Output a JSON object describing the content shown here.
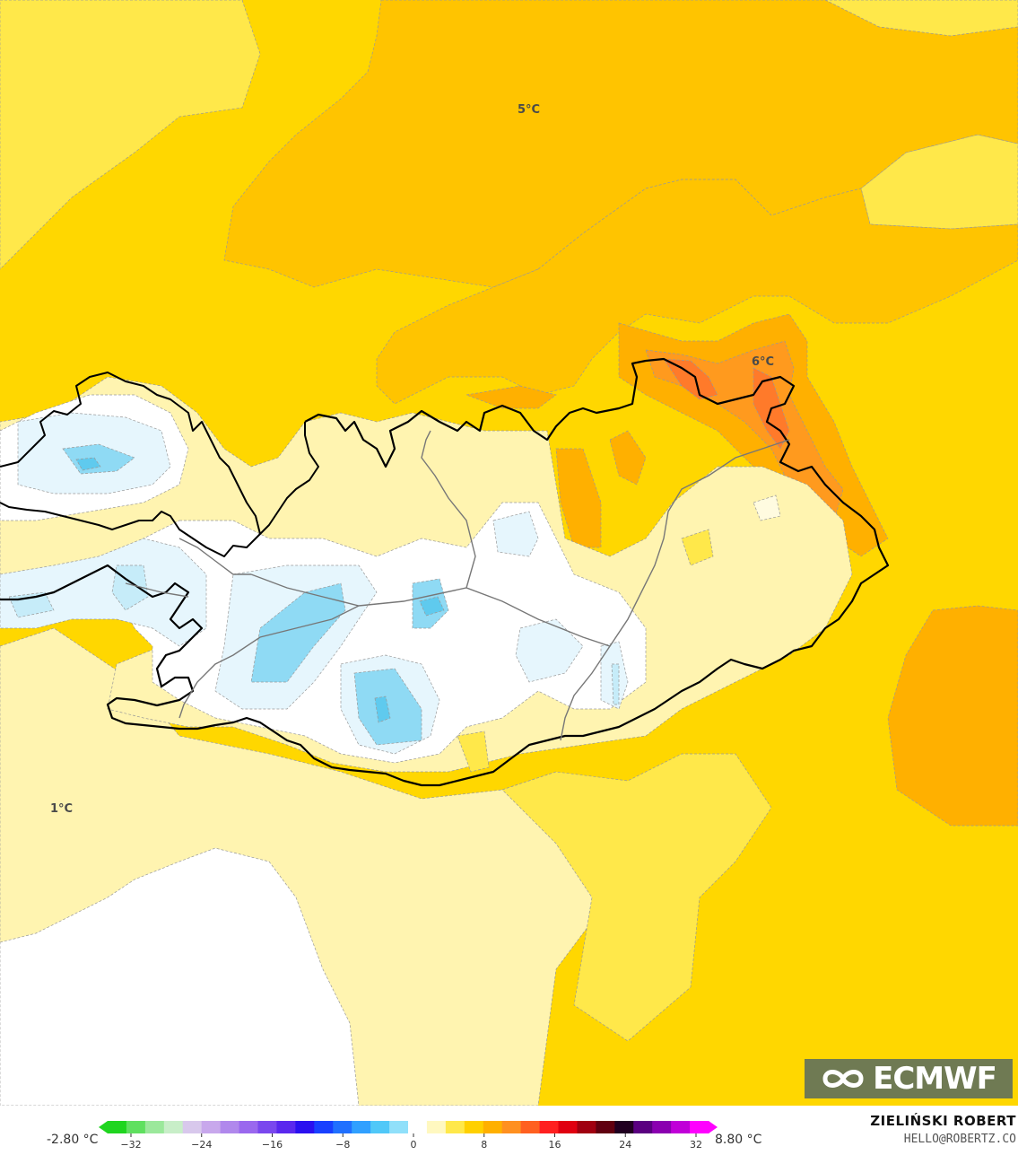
{
  "map": {
    "labels": {
      "label_5": "5°C",
      "label_6": "6°C",
      "label_1": "1°C"
    },
    "colors": {
      "white": "#ffffff",
      "pale_yellow": "#fff4b0",
      "light_yellow": "#ffe84a",
      "yellow": "#ffd700",
      "gold": "#ffc400",
      "orange": "#ffb000",
      "dark_orange": "#ff9a1e",
      "red_orange": "#ff7a2a",
      "pale_blue": "#e6f6fd",
      "light_blue": "#c6ecf9",
      "blue": "#8fdaf4",
      "mid_blue": "#5fcaee"
    }
  },
  "legend": {
    "min_value": "-2.80 °C",
    "max_value": "8.80 °C",
    "ticks": [
      "−32",
      "−24",
      "−16",
      "−8",
      "0",
      "8",
      "16",
      "24",
      "32"
    ],
    "colors": [
      "#1fd51f",
      "#5fe05f",
      "#9be89b",
      "#c8eec8",
      "#d8c8ec",
      "#c8a8ec",
      "#b088ec",
      "#9a68ee",
      "#7a48ee",
      "#5a28ee",
      "#2a10f0",
      "#1840ff",
      "#2070ff",
      "#30a0ff",
      "#50c8f8",
      "#90e0fa",
      "#ffffff",
      "#fff8c0",
      "#ffe84a",
      "#ffd000",
      "#ffb000",
      "#ff9020",
      "#ff6020",
      "#ff2020",
      "#e00010",
      "#a00010",
      "#600010",
      "#200020",
      "#5a0080",
      "#8a00b0",
      "#c000d8",
      "#ff00ff"
    ]
  },
  "credits": {
    "author": "ZIELIŃSKI ROBERT",
    "email": "HELLO@ROBERTZ.CO",
    "logo": "ECMWF"
  }
}
